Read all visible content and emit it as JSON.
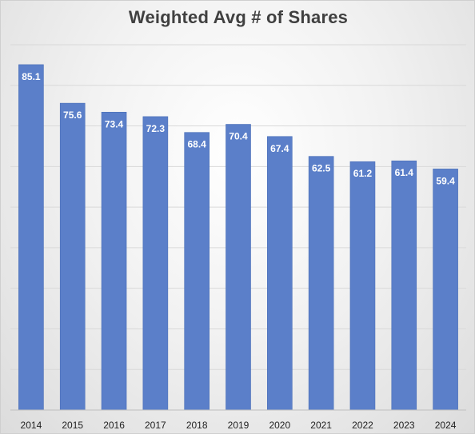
{
  "chart_data": {
    "type": "bar",
    "title": "Weighted Avg # of Shares",
    "xlabel": "",
    "ylabel": "",
    "categories": [
      "2014",
      "2015",
      "2016",
      "2017",
      "2018",
      "2019",
      "2020",
      "2021",
      "2022",
      "2023",
      "2024"
    ],
    "values": [
      85.1,
      75.6,
      73.4,
      72.3,
      68.4,
      70.4,
      67.4,
      62.5,
      61.2,
      61.4,
      59.4
    ],
    "data_labels": [
      "85.1",
      "75.6",
      "73.4",
      "72.3",
      "68.4",
      "70.4",
      "67.4",
      "62.5",
      "61.2",
      "61.4",
      "59.4"
    ],
    "ylim": [
      0,
      90
    ],
    "grid": true,
    "y_axis_visible": false,
    "legend": "none",
    "bar_color": "#5b7fc9",
    "bar_edge_color": "#4a6fb8",
    "label_color": "#ffffff",
    "gridline_color": "#d9d9d9",
    "title_color": "#404040",
    "tick_label_color": "#222222"
  }
}
